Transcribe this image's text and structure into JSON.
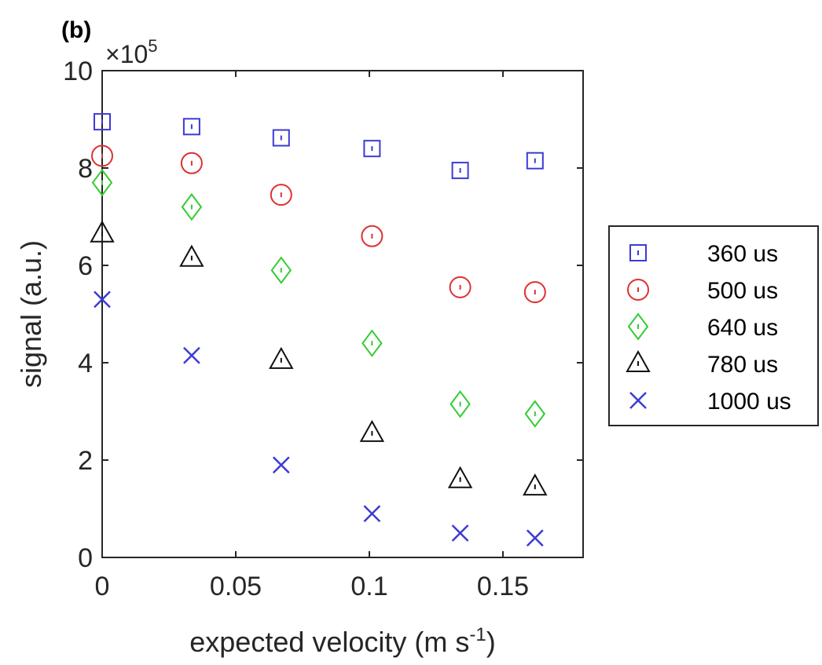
{
  "panel_label": "(b)",
  "chart_data": {
    "type": "scatter",
    "xlabel": "expected velocity (m s",
    "xlabel_sup": "-1",
    "xlabel_suffix": ")",
    "ylabel": "signal (a.u.)",
    "y_multiplier_base": "×10",
    "y_multiplier_exp": "5",
    "xlim": [
      0,
      0.18
    ],
    "ylim": [
      0,
      10
    ],
    "xticks": [
      0,
      0.05,
      0.1,
      0.15
    ],
    "xtick_labels": [
      "0",
      "0.05",
      "0.1",
      "0.15"
    ],
    "yticks": [
      0,
      2,
      4,
      6,
      8,
      10
    ],
    "ytick_labels": [
      "0",
      "2",
      "4",
      "6",
      "8",
      "10"
    ],
    "grid": false,
    "legend_position": "outside-right",
    "x": [
      0,
      0.0335,
      0.067,
      0.101,
      0.134,
      0.162
    ],
    "series": [
      {
        "name": "360 us",
        "marker": "square",
        "color": "#3b3bd6",
        "values": [
          8.95,
          8.85,
          8.62,
          8.4,
          7.95,
          8.15
        ]
      },
      {
        "name": "500 us",
        "marker": "circle",
        "color": "#e03030",
        "values": [
          8.25,
          8.1,
          7.45,
          6.6,
          5.55,
          5.45
        ]
      },
      {
        "name": "640 us",
        "marker": "diamond",
        "color": "#33cc33",
        "values": [
          7.7,
          7.2,
          5.9,
          4.4,
          3.15,
          2.95
        ]
      },
      {
        "name": "780 us",
        "marker": "triangle",
        "color": "#111111",
        "values": [
          6.65,
          6.15,
          4.05,
          2.55,
          1.6,
          1.45
        ]
      },
      {
        "name": "1000 us",
        "marker": "cross",
        "color": "#3b3bd6",
        "values": [
          5.3,
          4.15,
          1.9,
          0.9,
          0.5,
          0.4
        ]
      }
    ]
  }
}
